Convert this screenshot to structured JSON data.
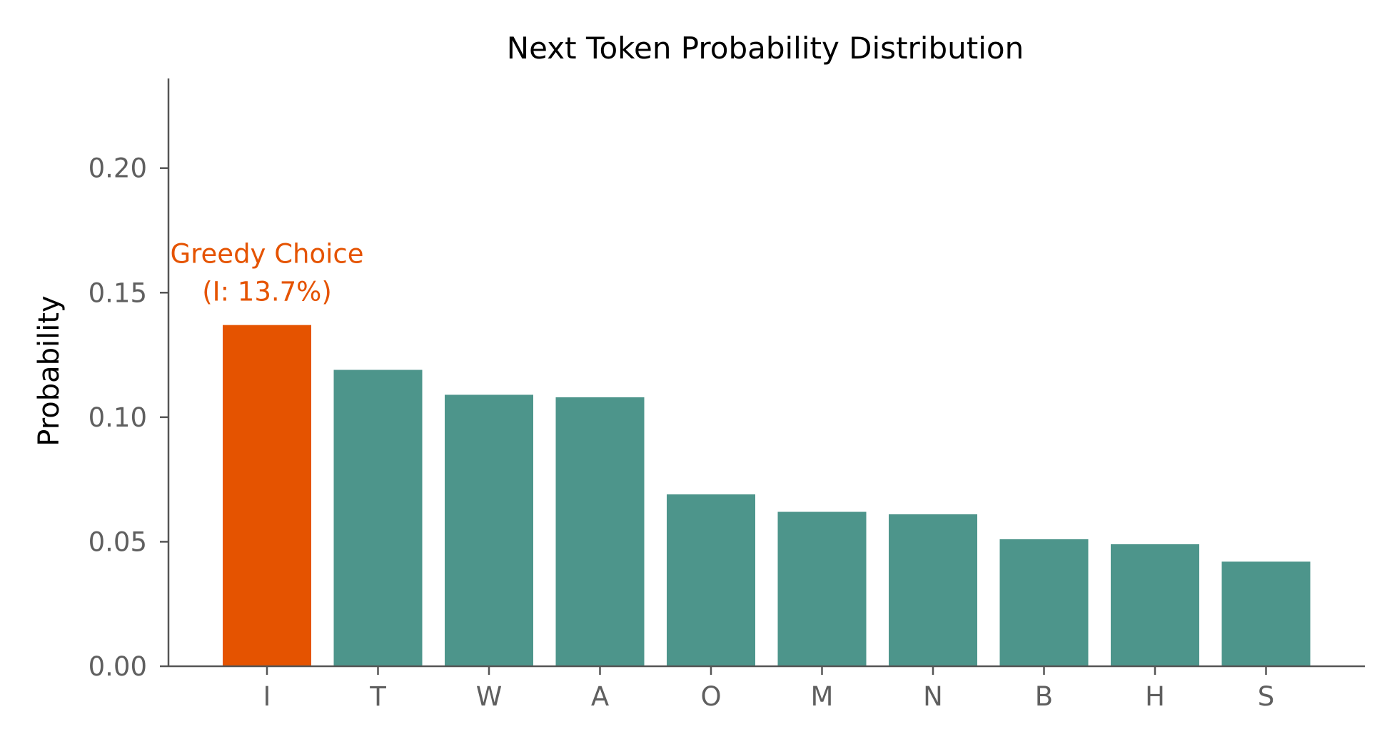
{
  "chart_data": {
    "type": "bar",
    "title": "Next Token Probability Distribution",
    "xlabel": "",
    "ylabel": "Probability",
    "categories": [
      "I",
      "T",
      "W",
      "A",
      "O",
      "M",
      "N",
      "B",
      "H",
      "S"
    ],
    "values": [
      0.137,
      0.119,
      0.109,
      0.108,
      0.069,
      0.062,
      0.061,
      0.051,
      0.049,
      0.042
    ],
    "ylim": [
      0,
      0.236
    ],
    "yticks": [
      0.0,
      0.05,
      0.1,
      0.15,
      0.2
    ],
    "ytick_labels": [
      "0.00",
      "0.05",
      "0.10",
      "0.15",
      "0.20"
    ],
    "grid": false,
    "legend": "none",
    "highlight_index": 0,
    "annotation": {
      "line1": "Greedy Choice",
      "line2": "(I: 13.7%)"
    },
    "colors": {
      "bar": "#4d958b",
      "highlight": "#e55300",
      "annotation": "#e55300",
      "axis": "#555555",
      "tick_text": "#5f5f5f"
    }
  }
}
